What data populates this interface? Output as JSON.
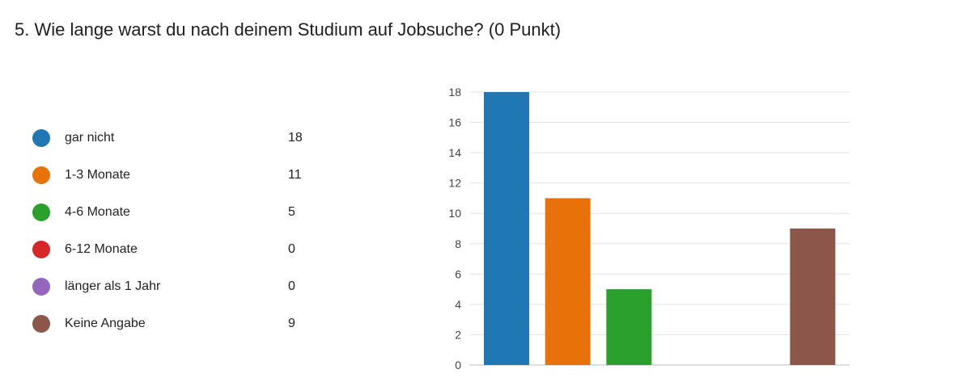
{
  "question": {
    "title": "5.  Wie lange warst du nach deinem Studium auf Jobsuche? (0 Punkt)"
  },
  "legend": [
    {
      "label": "gar nicht",
      "count": "18",
      "color": "#1f77b4"
    },
    {
      "label": "1-3 Monate",
      "count": "11",
      "color": "#e8710a"
    },
    {
      "label": "4-6 Monate",
      "count": "5",
      "color": "#2ca02c"
    },
    {
      "label": "6-12 Monate",
      "count": "0",
      "color": "#d62728"
    },
    {
      "label": "länger als 1 Jahr",
      "count": "0",
      "color": "#9467bd"
    },
    {
      "label": "Keine Angabe",
      "count": "9",
      "color": "#8c564b"
    }
  ],
  "chart_data": {
    "type": "bar",
    "categories": [
      "gar nicht",
      "1-3 Monate",
      "4-6 Monate",
      "6-12 Monate",
      "länger als 1 Jahr",
      "Keine Angabe"
    ],
    "values": [
      18,
      11,
      5,
      0,
      0,
      9
    ],
    "colors": [
      "#1f77b4",
      "#e8710a",
      "#2ca02c",
      "#d62728",
      "#9467bd",
      "#8c564b"
    ],
    "ylim": [
      0,
      18
    ],
    "yticks": [
      0,
      2,
      4,
      6,
      8,
      10,
      12,
      14,
      16,
      18
    ],
    "grid": true,
    "legend_placement": "left"
  }
}
